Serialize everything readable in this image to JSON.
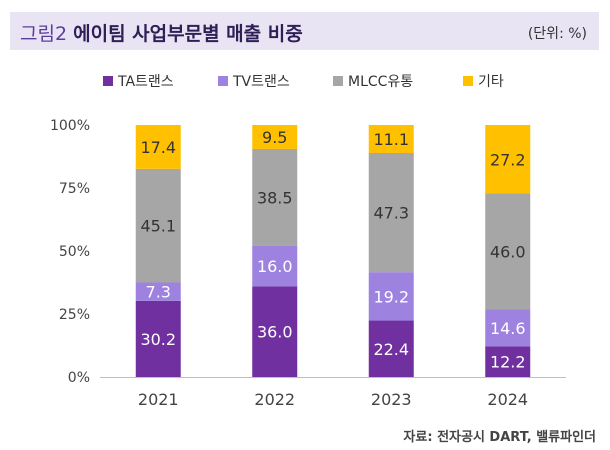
{
  "header": {
    "figure_label": "그림2",
    "title": "에이팀 사업부문별 매출 비중",
    "unit": "(단위: %)"
  },
  "source": "자료: 전자공시 DART, 밸류파인더",
  "colors": {
    "header_bg": "#e9e4f3",
    "TA": "#7030a0",
    "TV": "#9d82e0",
    "MLCC": "#a6a6a6",
    "other": "#ffc000"
  },
  "chart_data": {
    "type": "bar",
    "stacked": true,
    "categories": [
      "2021",
      "2022",
      "2023",
      "2024"
    ],
    "series": [
      {
        "name": "TA트랜스",
        "color": "#7030a0",
        "label_color": "#ffffff",
        "values": [
          30.2,
          36.0,
          22.4,
          12.2
        ]
      },
      {
        "name": "TV트랜스",
        "color": "#9d82e0",
        "label_color": "#ffffff",
        "values": [
          7.3,
          16.0,
          19.2,
          14.6
        ]
      },
      {
        "name": "MLCC유통",
        "color": "#a6a6a6",
        "label_color": "#333333",
        "values": [
          45.1,
          38.5,
          47.3,
          46.0
        ]
      },
      {
        "name": "기타",
        "color": "#ffc000",
        "label_color": "#333333",
        "values": [
          17.4,
          9.5,
          11.1,
          27.2
        ]
      }
    ],
    "yticks": [
      "0%",
      "25%",
      "50%",
      "75%",
      "100%"
    ],
    "ylim": [
      0,
      100
    ],
    "legend_position": "top",
    "grid": false
  }
}
